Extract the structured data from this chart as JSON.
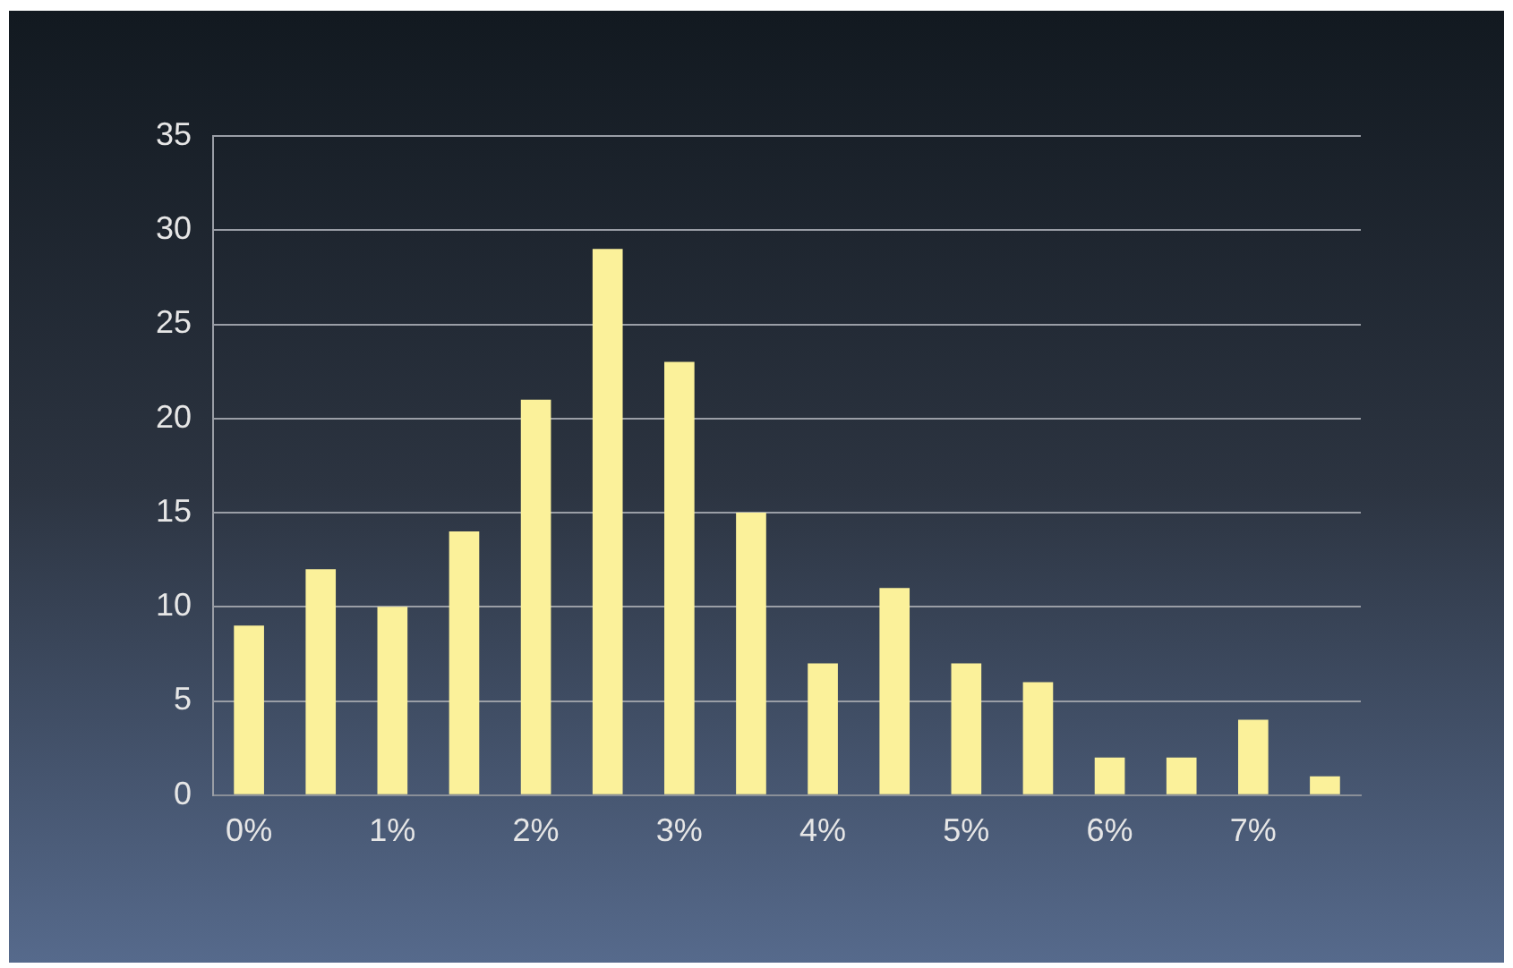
{
  "chart_data": {
    "type": "bar",
    "categories": [
      "0%",
      null,
      "1%",
      null,
      "2%",
      null,
      "3%",
      null,
      "4%",
      null,
      "5%",
      null,
      "6%",
      null,
      "7%",
      null
    ],
    "values": [
      9,
      12,
      10,
      14,
      21,
      29,
      23,
      15,
      7,
      11,
      7,
      6,
      2,
      2,
      4,
      1
    ],
    "color": "#fbf19a",
    "ylim": [
      0,
      35
    ],
    "yticks": [
      0,
      5,
      10,
      15,
      20,
      25,
      30,
      35
    ],
    "grid": "y",
    "legend": false
  }
}
